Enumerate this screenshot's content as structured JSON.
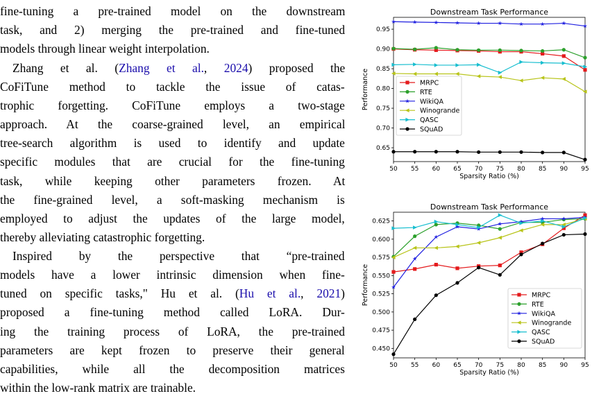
{
  "text_lines": [
    [
      {
        "t": "fine-tuning a pre-trained model on the downstream"
      }
    ],
    [
      {
        "t": "task, and 2) merging the pre-trained and fine-tuned"
      }
    ],
    [
      {
        "t": "models through linear weight interpolation."
      }
    ],
    [
      {
        "t": "Zhang et al. ("
      },
      {
        "t": "Zhang et al.",
        "link": true
      },
      {
        "t": ", "
      },
      {
        "t": "2024",
        "link": true
      },
      {
        "t": ") proposed the"
      }
    ],
    [
      {
        "t": "CoFiTune method to tackle the issue of catas-"
      }
    ],
    [
      {
        "t": "trophic forgetting. CoFiTune employs a two-stage"
      }
    ],
    [
      {
        "t": "approach. At the coarse-grained level, an empirical"
      }
    ],
    [
      {
        "t": "tree-search algorithm is used to identify and update"
      }
    ],
    [
      {
        "t": "specific modules that are crucial for the fine-tuning"
      }
    ],
    [
      {
        "t": "task, while keeping other parameters frozen. At"
      }
    ],
    [
      {
        "t": "the fine-grained level, a soft-masking mechanism is"
      }
    ],
    [
      {
        "t": "employed to adjust the updates of the large model,"
      }
    ],
    [
      {
        "t": "thereby alleviating catastrophic forgetting."
      }
    ],
    [
      {
        "t": "Inspired by the perspective that “pre-trained"
      }
    ],
    [
      {
        "t": "models have a lower intrinsic dimension when fine-"
      }
    ],
    [
      {
        "t": "tuned on specific tasks,\" Hu et al. ("
      },
      {
        "t": "Hu et al.",
        "link": true
      },
      {
        "t": ", "
      },
      {
        "t": "2021",
        "link": true
      },
      {
        "t": ")"
      }
    ],
    [
      {
        "t": "proposed a fine-tuning method called LoRA. Dur-"
      }
    ],
    [
      {
        "t": "ing the training process of LoRA, the pre-trained"
      }
    ],
    [
      {
        "t": "parameters are kept frozen to preserve their general"
      }
    ],
    [
      {
        "t": "capabilities, while all the decomposition matrices"
      }
    ],
    [
      {
        "t": "within the low-rank matrix are trainable."
      }
    ]
  ],
  "series_styles": [
    {
      "name": "MRPC",
      "color": "#e41a1c",
      "marker": "square"
    },
    {
      "name": "RTE",
      "color": "#2ca02c",
      "marker": "circle"
    },
    {
      "name": "WikiQA",
      "color": "#1f1fe0",
      "marker": "star"
    },
    {
      "name": "Winogrande",
      "color": "#b8c41a",
      "marker": "triangle-left"
    },
    {
      "name": "QASC",
      "color": "#17becf",
      "marker": "triangle-right"
    },
    {
      "name": "SQuAD",
      "color": "#000000",
      "marker": "circle"
    }
  ],
  "chart_data": [
    {
      "type": "line",
      "title": "Downstream Task Performance",
      "xlabel": "Sparsity Ratio (%)",
      "ylabel": "Performance",
      "x": [
        50,
        55,
        60,
        65,
        70,
        75,
        80,
        85,
        90,
        95
      ],
      "xlim": [
        50,
        95
      ],
      "ylim": [
        0.615,
        0.98
      ],
      "yticks": [
        0.65,
        0.7,
        0.75,
        0.8,
        0.85,
        0.9,
        0.95
      ],
      "legend": "center-left",
      "grid": false,
      "series": [
        {
          "name": "MRPC",
          "values": [
            0.9,
            0.898,
            0.897,
            0.896,
            0.895,
            0.893,
            0.893,
            0.888,
            0.882,
            0.847
          ]
        },
        {
          "name": "RTE",
          "values": [
            0.901,
            0.899,
            0.903,
            0.898,
            0.897,
            0.897,
            0.896,
            0.895,
            0.898,
            0.878
          ]
        },
        {
          "name": "WikiQA",
          "values": [
            0.969,
            0.968,
            0.967,
            0.966,
            0.965,
            0.965,
            0.963,
            0.963,
            0.965,
            0.958
          ]
        },
        {
          "name": "Winogrande",
          "values": [
            0.838,
            0.837,
            0.837,
            0.837,
            0.831,
            0.829,
            0.82,
            0.827,
            0.824,
            0.792
          ]
        },
        {
          "name": "QASC",
          "values": [
            0.86,
            0.861,
            0.859,
            0.859,
            0.86,
            0.84,
            0.867,
            0.865,
            0.864,
            0.855
          ]
        },
        {
          "name": "SQuAD",
          "values": [
            0.64,
            0.64,
            0.64,
            0.64,
            0.639,
            0.639,
            0.639,
            0.638,
            0.638,
            0.62
          ]
        }
      ]
    },
    {
      "type": "line",
      "title": "Downstream Task Performance",
      "xlabel": "Sparsity Ratio (%)",
      "ylabel": "Performance",
      "x": [
        50,
        55,
        60,
        65,
        70,
        75,
        80,
        85,
        90,
        95
      ],
      "xlim": [
        50,
        95
      ],
      "ylim": [
        0.437,
        0.637
      ],
      "yticks": [
        0.45,
        0.475,
        0.5,
        0.525,
        0.55,
        0.575,
        0.6,
        0.625
      ],
      "legend": "lower-right",
      "grid": false,
      "series": [
        {
          "name": "MRPC",
          "values": [
            0.555,
            0.559,
            0.565,
            0.56,
            0.563,
            0.564,
            0.582,
            0.593,
            0.615,
            0.633
          ]
        },
        {
          "name": "RTE",
          "values": [
            0.576,
            0.604,
            0.62,
            0.622,
            0.619,
            0.614,
            0.623,
            0.623,
            0.627,
            0.628
          ]
        },
        {
          "name": "WikiQA",
          "values": [
            0.534,
            0.573,
            0.603,
            0.617,
            0.614,
            0.621,
            0.624,
            0.628,
            0.628,
            0.63
          ]
        },
        {
          "name": "Winogrande",
          "values": [
            0.575,
            0.588,
            0.588,
            0.59,
            0.595,
            0.602,
            0.612,
            0.62,
            0.62,
            0.628
          ]
        },
        {
          "name": "QASC",
          "values": [
            0.615,
            0.616,
            0.624,
            0.62,
            0.616,
            0.633,
            0.622,
            0.625,
            0.617,
            0.629
          ]
        },
        {
          "name": "SQuAD",
          "values": [
            0.442,
            0.49,
            0.523,
            0.54,
            0.561,
            0.551,
            0.579,
            0.594,
            0.606,
            0.607
          ]
        }
      ]
    }
  ]
}
